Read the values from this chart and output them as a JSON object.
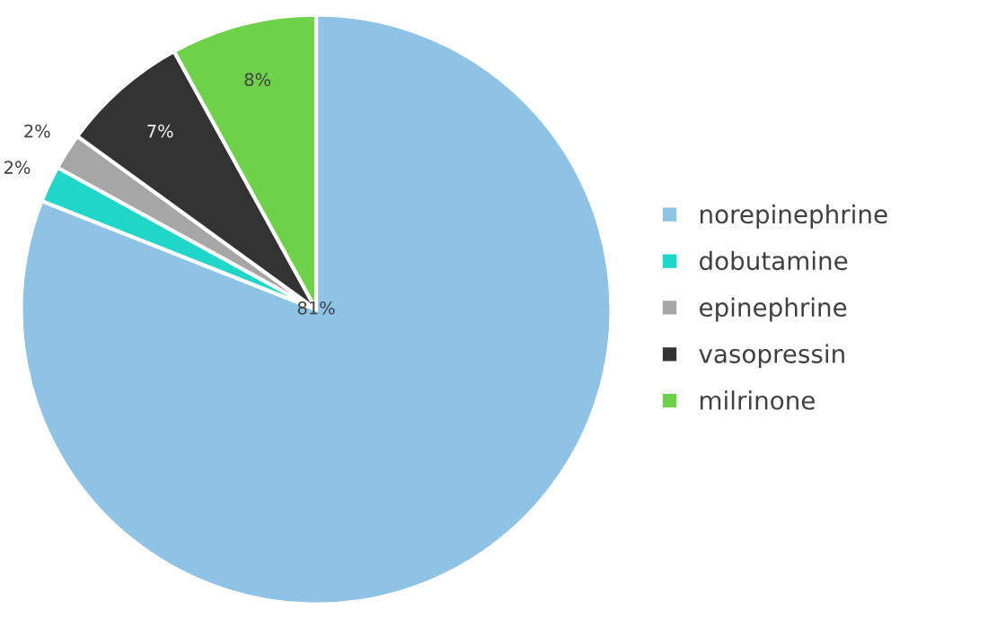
{
  "chart_data": {
    "type": "pie",
    "categories": [
      "norepinephrine",
      "dobutamine",
      "epinephrine",
      "vasopressin",
      "milrinone"
    ],
    "values": [
      81,
      2,
      2,
      7,
      8
    ],
    "colors": [
      "#8ec3e6",
      "#1fd6c8",
      "#a6a6a6",
      "#333333",
      "#6dd24a"
    ],
    "value_labels": [
      "81%",
      "2%",
      "2%",
      "7%",
      "8%"
    ],
    "legend": "right"
  }
}
